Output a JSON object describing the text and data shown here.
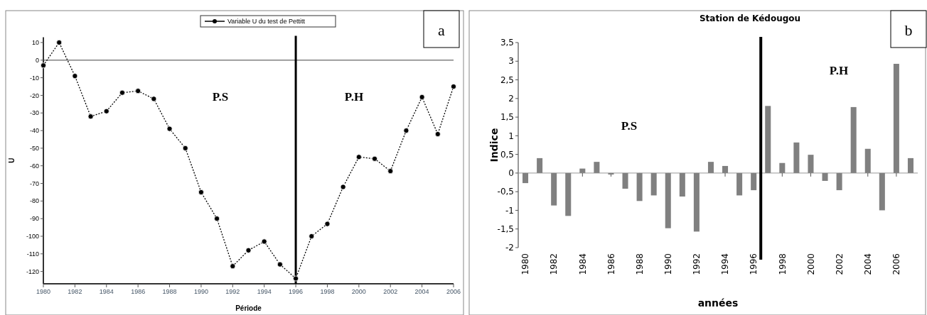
{
  "chart_data": [
    {
      "type": "line",
      "xlabel": "Période",
      "ylabel": "U",
      "legend": "top right",
      "marker": "circle",
      "line_style": "dotted",
      "x": [
        1980,
        1981,
        1982,
        1983,
        1984,
        1985,
        1986,
        1987,
        1988,
        1989,
        1990,
        1991,
        1992,
        1993,
        1994,
        1995,
        1996,
        1997,
        1998,
        1999,
        2000,
        2001,
        2002,
        2003,
        2004,
        2005,
        2006
      ],
      "series": [
        {
          "name": "Variable U du test de Pettitt",
          "color": "#000000",
          "values": [
            -3,
            10,
            -9,
            -32,
            -29,
            -18.5,
            -17.5,
            -22,
            -39,
            -50,
            -75,
            -90,
            -117,
            -108,
            -103,
            -116,
            -124,
            -100,
            -93,
            -72,
            -55,
            -56,
            -63,
            -40,
            -21,
            -42,
            -15
          ]
        }
      ],
      "xlim": [
        1980,
        2006
      ],
      "xticks": [
        1980,
        1982,
        1984,
        1986,
        1988,
        1990,
        1992,
        1994,
        1996,
        1998,
        2000,
        2002,
        2004,
        2006
      ],
      "ylim": [
        -127,
        13
      ],
      "yticks": [
        10,
        0,
        -10,
        -20,
        -30,
        -40,
        -50,
        -60,
        -70,
        -80,
        -90,
        -100,
        -110,
        -120
      ],
      "ref_lines": [
        {
          "axis": "y",
          "value": 0,
          "color": "#808080"
        },
        {
          "axis": "x",
          "value": 1996,
          "color": "#000000"
        }
      ],
      "annotations": [
        "P.S",
        "P.H",
        "a"
      ]
    },
    {
      "type": "bar",
      "title": "Station de Kédougou",
      "xlabel": "années",
      "ylabel": "Indice",
      "x": [
        1980,
        1981,
        1982,
        1983,
        1984,
        1985,
        1986,
        1987,
        1988,
        1989,
        1990,
        1991,
        1992,
        1993,
        1994,
        1995,
        1996,
        1997,
        1998,
        1999,
        2000,
        2001,
        2002,
        2003,
        2004,
        2005,
        2006,
        2007
      ],
      "series": [
        {
          "color": "#808080",
          "values": [
            -0.27,
            0.4,
            -0.87,
            -1.15,
            0.12,
            0.3,
            -0.04,
            -0.42,
            -0.75,
            -0.6,
            -1.48,
            -0.63,
            -1.57,
            0.3,
            0.19,
            -0.6,
            -0.46,
            1.8,
            0.27,
            0.82,
            0.49,
            -0.21,
            -0.46,
            1.77,
            0.65,
            -1.0,
            2.93,
            0.4
          ]
        }
      ],
      "xlim": [
        1979.5,
        2007.5
      ],
      "xticks": [
        1980,
        1982,
        1984,
        1986,
        1988,
        1990,
        1992,
        1994,
        1996,
        1998,
        2000,
        2002,
        2004,
        2006
      ],
      "ylim": [
        -2,
        3.5
      ],
      "yticks": [
        {
          "value": 3.5,
          "label": "3,5"
        },
        3,
        {
          "value": 2.5,
          "label": "2,5"
        },
        2,
        {
          "value": 1.5,
          "label": "1,5"
        },
        1,
        {
          "value": 0.5,
          "label": "0,5"
        },
        0,
        {
          "value": -0.5,
          "label": "-0,5"
        },
        -1,
        {
          "value": -1.5,
          "label": "-1,5"
        },
        -2
      ],
      "ref_lines": [
        {
          "axis": "x",
          "value": 1996.5,
          "color": "#000000"
        }
      ],
      "annotations": [
        "P.S",
        "P.H",
        "b"
      ]
    }
  ]
}
